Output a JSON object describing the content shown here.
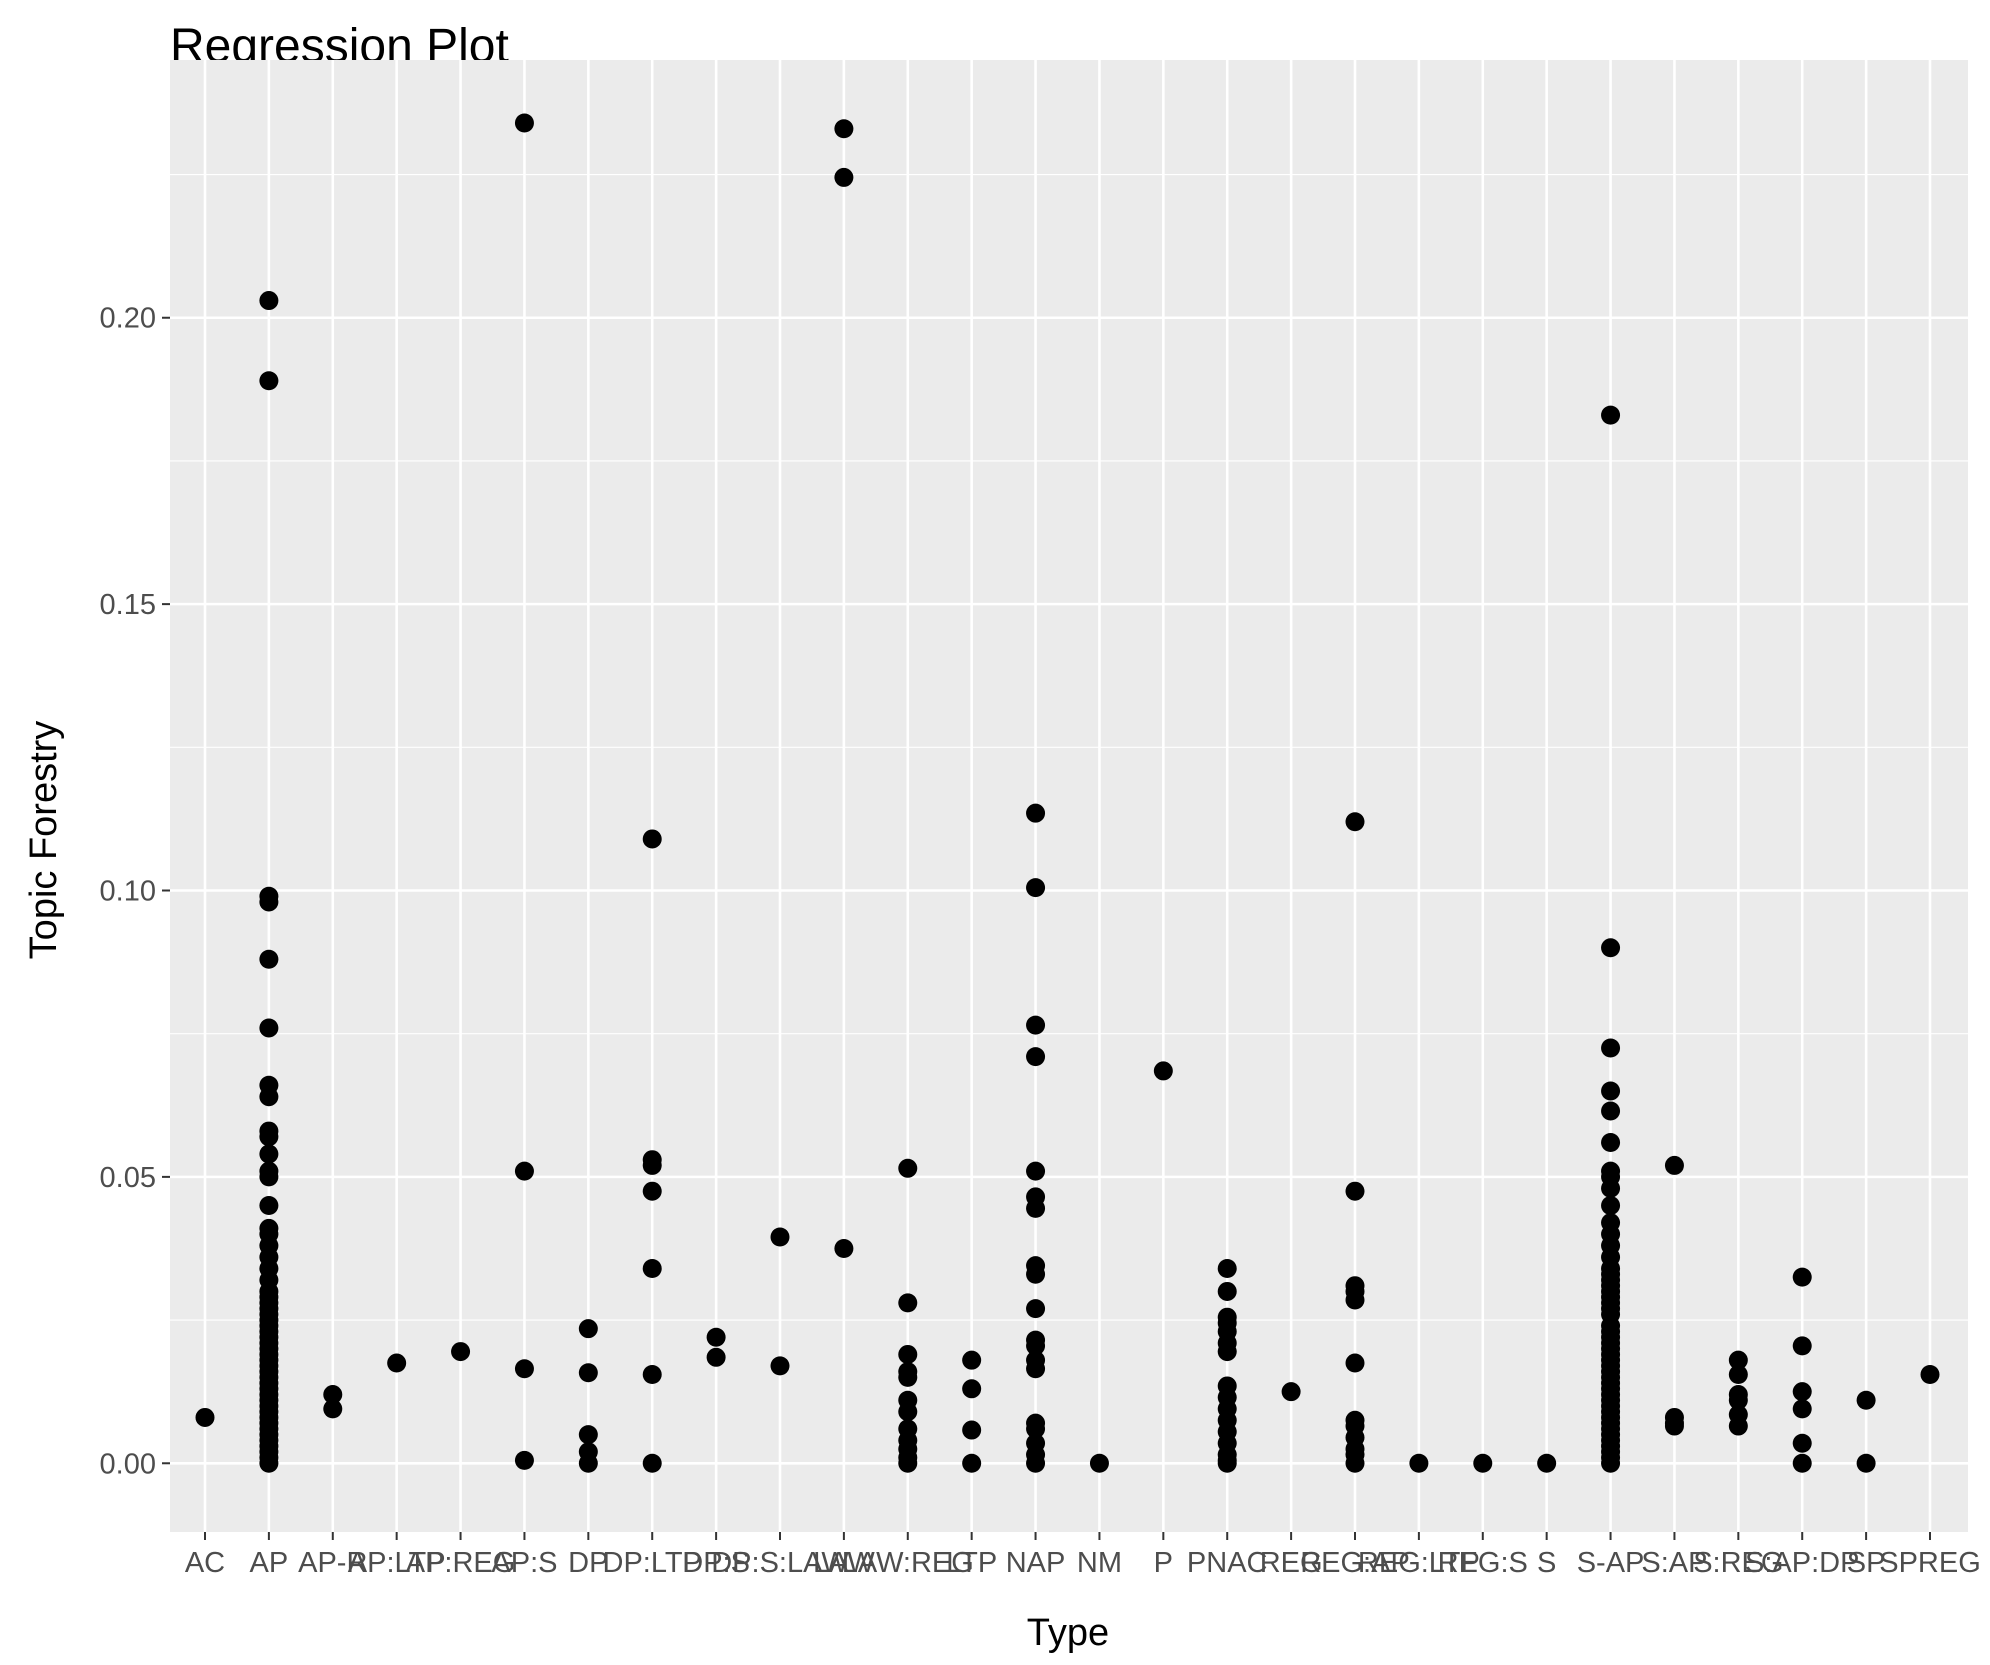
{
  "chart_data": {
    "type": "scatter",
    "title": "Regression Plot",
    "xlabel": "Type",
    "ylabel": "Topic Forestry",
    "ylim": [
      -0.012,
      0.245
    ],
    "yticks": [
      "0.00",
      "0.05",
      "0.10",
      "0.15",
      "0.20"
    ],
    "grid": true,
    "legend": "none",
    "colors": {
      "panel": "#ebebeb",
      "grid": "#ffffff",
      "point": "#000000",
      "tick_text": "#4d4d4d"
    },
    "categories": [
      "AC",
      "AP",
      "AP-R",
      "AP:LTP",
      "AP:REG",
      "AP:S",
      "DP",
      "DP:LTP",
      "DP:S",
      "DP:S:LAW",
      "LAW",
      "LAW:REG",
      "LTP",
      "NAP",
      "NM",
      "P",
      "PNAC",
      "REG",
      "REG:AP",
      "REG:LTP",
      "REG:S",
      "S",
      "S-AP",
      "S:AP",
      "S:REG",
      "S:AP:DP",
      "SP",
      "SPREG"
    ],
    "series": [
      {
        "points": [
          {
            "x": "AC",
            "y": 0.008
          },
          {
            "x": "AP",
            "y": 0.203
          },
          {
            "x": "AP",
            "y": 0.189
          },
          {
            "x": "AP",
            "y": 0.099
          },
          {
            "x": "AP",
            "y": 0.098
          },
          {
            "x": "AP",
            "y": 0.088
          },
          {
            "x": "AP",
            "y": 0.076
          },
          {
            "x": "AP",
            "y": 0.066
          },
          {
            "x": "AP",
            "y": 0.064
          },
          {
            "x": "AP",
            "y": 0.058
          },
          {
            "x": "AP",
            "y": 0.057
          },
          {
            "x": "AP",
            "y": 0.054
          },
          {
            "x": "AP",
            "y": 0.051
          },
          {
            "x": "AP",
            "y": 0.05
          },
          {
            "x": "AP",
            "y": 0.045
          },
          {
            "x": "AP",
            "y": 0.041
          },
          {
            "x": "AP",
            "y": 0.04
          },
          {
            "x": "AP",
            "y": 0.038
          },
          {
            "x": "AP",
            "y": 0.036
          },
          {
            "x": "AP",
            "y": 0.034
          },
          {
            "x": "AP",
            "y": 0.032
          },
          {
            "x": "AP",
            "y": 0.03
          },
          {
            "x": "AP",
            "y": 0.029
          },
          {
            "x": "AP",
            "y": 0.028
          },
          {
            "x": "AP",
            "y": 0.027
          },
          {
            "x": "AP",
            "y": 0.026
          },
          {
            "x": "AP",
            "y": 0.025
          },
          {
            "x": "AP",
            "y": 0.024
          },
          {
            "x": "AP",
            "y": 0.023
          },
          {
            "x": "AP",
            "y": 0.022
          },
          {
            "x": "AP",
            "y": 0.021
          },
          {
            "x": "AP",
            "y": 0.02
          },
          {
            "x": "AP",
            "y": 0.019
          },
          {
            "x": "AP",
            "y": 0.018
          },
          {
            "x": "AP",
            "y": 0.017
          },
          {
            "x": "AP",
            "y": 0.016
          },
          {
            "x": "AP",
            "y": 0.015
          },
          {
            "x": "AP",
            "y": 0.014
          },
          {
            "x": "AP",
            "y": 0.013
          },
          {
            "x": "AP",
            "y": 0.012
          },
          {
            "x": "AP",
            "y": 0.011
          },
          {
            "x": "AP",
            "y": 0.01
          },
          {
            "x": "AP",
            "y": 0.009
          },
          {
            "x": "AP",
            "y": 0.008
          },
          {
            "x": "AP",
            "y": 0.007
          },
          {
            "x": "AP",
            "y": 0.006
          },
          {
            "x": "AP",
            "y": 0.005
          },
          {
            "x": "AP",
            "y": 0.004
          },
          {
            "x": "AP",
            "y": 0.003
          },
          {
            "x": "AP",
            "y": 0.002
          },
          {
            "x": "AP",
            "y": 0.001
          },
          {
            "x": "AP",
            "y": 0.0
          },
          {
            "x": "AP-R",
            "y": 0.012
          },
          {
            "x": "AP-R",
            "y": 0.0095
          },
          {
            "x": "AP:LTP",
            "y": 0.0175
          },
          {
            "x": "AP:REG",
            "y": 0.0195
          },
          {
            "x": "AP:S",
            "y": 0.234
          },
          {
            "x": "AP:S",
            "y": 0.051
          },
          {
            "x": "AP:S",
            "y": 0.0165
          },
          {
            "x": "AP:S",
            "y": 0.0005
          },
          {
            "x": "DP",
            "y": 0.0235
          },
          {
            "x": "DP",
            "y": 0.0158
          },
          {
            "x": "DP",
            "y": 0.005
          },
          {
            "x": "DP",
            "y": 0.002
          },
          {
            "x": "DP",
            "y": 0.0
          },
          {
            "x": "DP:LTP",
            "y": 0.109
          },
          {
            "x": "DP:LTP",
            "y": 0.053
          },
          {
            "x": "DP:LTP",
            "y": 0.052
          },
          {
            "x": "DP:LTP",
            "y": 0.0475
          },
          {
            "x": "DP:LTP",
            "y": 0.034
          },
          {
            "x": "DP:LTP",
            "y": 0.0155
          },
          {
            "x": "DP:LTP",
            "y": 0.0
          },
          {
            "x": "DP:S",
            "y": 0.022
          },
          {
            "x": "DP:S",
            "y": 0.0185
          },
          {
            "x": "DP:S:LAW",
            "y": 0.0395
          },
          {
            "x": "DP:S:LAW",
            "y": 0.017
          },
          {
            "x": "LAW",
            "y": 0.233
          },
          {
            "x": "LAW",
            "y": 0.2245
          },
          {
            "x": "LAW",
            "y": 0.0375
          },
          {
            "x": "LAW:REG",
            "y": 0.0515
          },
          {
            "x": "LAW:REG",
            "y": 0.028
          },
          {
            "x": "LAW:REG",
            "y": 0.019
          },
          {
            "x": "LAW:REG",
            "y": 0.016
          },
          {
            "x": "LAW:REG",
            "y": 0.015
          },
          {
            "x": "LAW:REG",
            "y": 0.011
          },
          {
            "x": "LAW:REG",
            "y": 0.009
          },
          {
            "x": "LAW:REG",
            "y": 0.006
          },
          {
            "x": "LAW:REG",
            "y": 0.004
          },
          {
            "x": "LAW:REG",
            "y": 0.0025
          },
          {
            "x": "LAW:REG",
            "y": 0.001
          },
          {
            "x": "LAW:REG",
            "y": 0.0
          },
          {
            "x": "LTP",
            "y": 0.018
          },
          {
            "x": "LTP",
            "y": 0.013
          },
          {
            "x": "LTP",
            "y": 0.0058
          },
          {
            "x": "LTP",
            "y": 0.0
          },
          {
            "x": "NAP",
            "y": 0.1135
          },
          {
            "x": "NAP",
            "y": 0.1005
          },
          {
            "x": "NAP",
            "y": 0.0765
          },
          {
            "x": "NAP",
            "y": 0.071
          },
          {
            "x": "NAP",
            "y": 0.051
          },
          {
            "x": "NAP",
            "y": 0.0465
          },
          {
            "x": "NAP",
            "y": 0.0445
          },
          {
            "x": "NAP",
            "y": 0.0345
          },
          {
            "x": "NAP",
            "y": 0.033
          },
          {
            "x": "NAP",
            "y": 0.027
          },
          {
            "x": "NAP",
            "y": 0.0215
          },
          {
            "x": "NAP",
            "y": 0.0205
          },
          {
            "x": "NAP",
            "y": 0.018
          },
          {
            "x": "NAP",
            "y": 0.0165
          },
          {
            "x": "NAP",
            "y": 0.007
          },
          {
            "x": "NAP",
            "y": 0.006
          },
          {
            "x": "NAP",
            "y": 0.0035
          },
          {
            "x": "NAP",
            "y": 0.0015
          },
          {
            "x": "NAP",
            "y": 0.0
          },
          {
            "x": "NM",
            "y": 0.0
          },
          {
            "x": "P",
            "y": 0.0685
          },
          {
            "x": "PNAC",
            "y": 0.034
          },
          {
            "x": "PNAC",
            "y": 0.03
          },
          {
            "x": "PNAC",
            "y": 0.0255
          },
          {
            "x": "PNAC",
            "y": 0.0245
          },
          {
            "x": "PNAC",
            "y": 0.023
          },
          {
            "x": "PNAC",
            "y": 0.021
          },
          {
            "x": "PNAC",
            "y": 0.0195
          },
          {
            "x": "PNAC",
            "y": 0.0135
          },
          {
            "x": "PNAC",
            "y": 0.0115
          },
          {
            "x": "PNAC",
            "y": 0.0095
          },
          {
            "x": "PNAC",
            "y": 0.0075
          },
          {
            "x": "PNAC",
            "y": 0.0055
          },
          {
            "x": "PNAC",
            "y": 0.0035
          },
          {
            "x": "PNAC",
            "y": 0.0015
          },
          {
            "x": "PNAC",
            "y": 0.0005
          },
          {
            "x": "PNAC",
            "y": 0.0
          },
          {
            "x": "REG",
            "y": 0.0125
          },
          {
            "x": "REG:AP",
            "y": 0.112
          },
          {
            "x": "REG:AP",
            "y": 0.0475
          },
          {
            "x": "REG:AP",
            "y": 0.031
          },
          {
            "x": "REG:AP",
            "y": 0.03
          },
          {
            "x": "REG:AP",
            "y": 0.0285
          },
          {
            "x": "REG:AP",
            "y": 0.0175
          },
          {
            "x": "REG:AP",
            "y": 0.0075
          },
          {
            "x": "REG:AP",
            "y": 0.0065
          },
          {
            "x": "REG:AP",
            "y": 0.0045
          },
          {
            "x": "REG:AP",
            "y": 0.0025
          },
          {
            "x": "REG:AP",
            "y": 0.0015
          },
          {
            "x": "REG:AP",
            "y": 0.0
          },
          {
            "x": "REG:LTP",
            "y": 0.0
          },
          {
            "x": "REG:S",
            "y": 0.0
          },
          {
            "x": "S",
            "y": 0.0
          },
          {
            "x": "S-AP",
            "y": 0.183
          },
          {
            "x": "S-AP",
            "y": 0.09
          },
          {
            "x": "S-AP",
            "y": 0.0725
          },
          {
            "x": "S-AP",
            "y": 0.065
          },
          {
            "x": "S-AP",
            "y": 0.0615
          },
          {
            "x": "S-AP",
            "y": 0.056
          },
          {
            "x": "S-AP",
            "y": 0.051
          },
          {
            "x": "S-AP",
            "y": 0.05
          },
          {
            "x": "S-AP",
            "y": 0.048
          },
          {
            "x": "S-AP",
            "y": 0.045
          },
          {
            "x": "S-AP",
            "y": 0.042
          },
          {
            "x": "S-AP",
            "y": 0.04
          },
          {
            "x": "S-AP",
            "y": 0.038
          },
          {
            "x": "S-AP",
            "y": 0.036
          },
          {
            "x": "S-AP",
            "y": 0.034
          },
          {
            "x": "S-AP",
            "y": 0.033
          },
          {
            "x": "S-AP",
            "y": 0.032
          },
          {
            "x": "S-AP",
            "y": 0.031
          },
          {
            "x": "S-AP",
            "y": 0.03
          },
          {
            "x": "S-AP",
            "y": 0.029
          },
          {
            "x": "S-AP",
            "y": 0.028
          },
          {
            "x": "S-AP",
            "y": 0.027
          },
          {
            "x": "S-AP",
            "y": 0.026
          },
          {
            "x": "S-AP",
            "y": 0.024
          },
          {
            "x": "S-AP",
            "y": 0.023
          },
          {
            "x": "S-AP",
            "y": 0.022
          },
          {
            "x": "S-AP",
            "y": 0.021
          },
          {
            "x": "S-AP",
            "y": 0.02
          },
          {
            "x": "S-AP",
            "y": 0.019
          },
          {
            "x": "S-AP",
            "y": 0.018
          },
          {
            "x": "S-AP",
            "y": 0.017
          },
          {
            "x": "S-AP",
            "y": 0.016
          },
          {
            "x": "S-AP",
            "y": 0.015
          },
          {
            "x": "S-AP",
            "y": 0.014
          },
          {
            "x": "S-AP",
            "y": 0.013
          },
          {
            "x": "S-AP",
            "y": 0.012
          },
          {
            "x": "S-AP",
            "y": 0.011
          },
          {
            "x": "S-AP",
            "y": 0.01
          },
          {
            "x": "S-AP",
            "y": 0.009
          },
          {
            "x": "S-AP",
            "y": 0.008
          },
          {
            "x": "S-AP",
            "y": 0.007
          },
          {
            "x": "S-AP",
            "y": 0.006
          },
          {
            "x": "S-AP",
            "y": 0.005
          },
          {
            "x": "S-AP",
            "y": 0.004
          },
          {
            "x": "S-AP",
            "y": 0.003
          },
          {
            "x": "S-AP",
            "y": 0.002
          },
          {
            "x": "S-AP",
            "y": 0.001
          },
          {
            "x": "S-AP",
            "y": 0.0
          },
          {
            "x": "S:AP",
            "y": 0.052
          },
          {
            "x": "S:AP",
            "y": 0.008
          },
          {
            "x": "S:AP",
            "y": 0.007
          },
          {
            "x": "S:AP",
            "y": 0.0065
          },
          {
            "x": "S:REG",
            "y": 0.018
          },
          {
            "x": "S:REG",
            "y": 0.0155
          },
          {
            "x": "S:REG",
            "y": 0.012
          },
          {
            "x": "S:REG",
            "y": 0.011
          },
          {
            "x": "S:REG",
            "y": 0.0085
          },
          {
            "x": "S:REG",
            "y": 0.0065
          },
          {
            "x": "S:AP:DP",
            "y": 0.0325
          },
          {
            "x": "S:AP:DP",
            "y": 0.0205
          },
          {
            "x": "S:AP:DP",
            "y": 0.0125
          },
          {
            "x": "S:AP:DP",
            "y": 0.0095
          },
          {
            "x": "S:AP:DP",
            "y": 0.0035
          },
          {
            "x": "S:AP:DP",
            "y": 0.0
          },
          {
            "x": "SP",
            "y": 0.011
          },
          {
            "x": "SP",
            "y": 0.0
          },
          {
            "x": "SPREG",
            "y": 0.0155
          }
        ]
      }
    ]
  }
}
